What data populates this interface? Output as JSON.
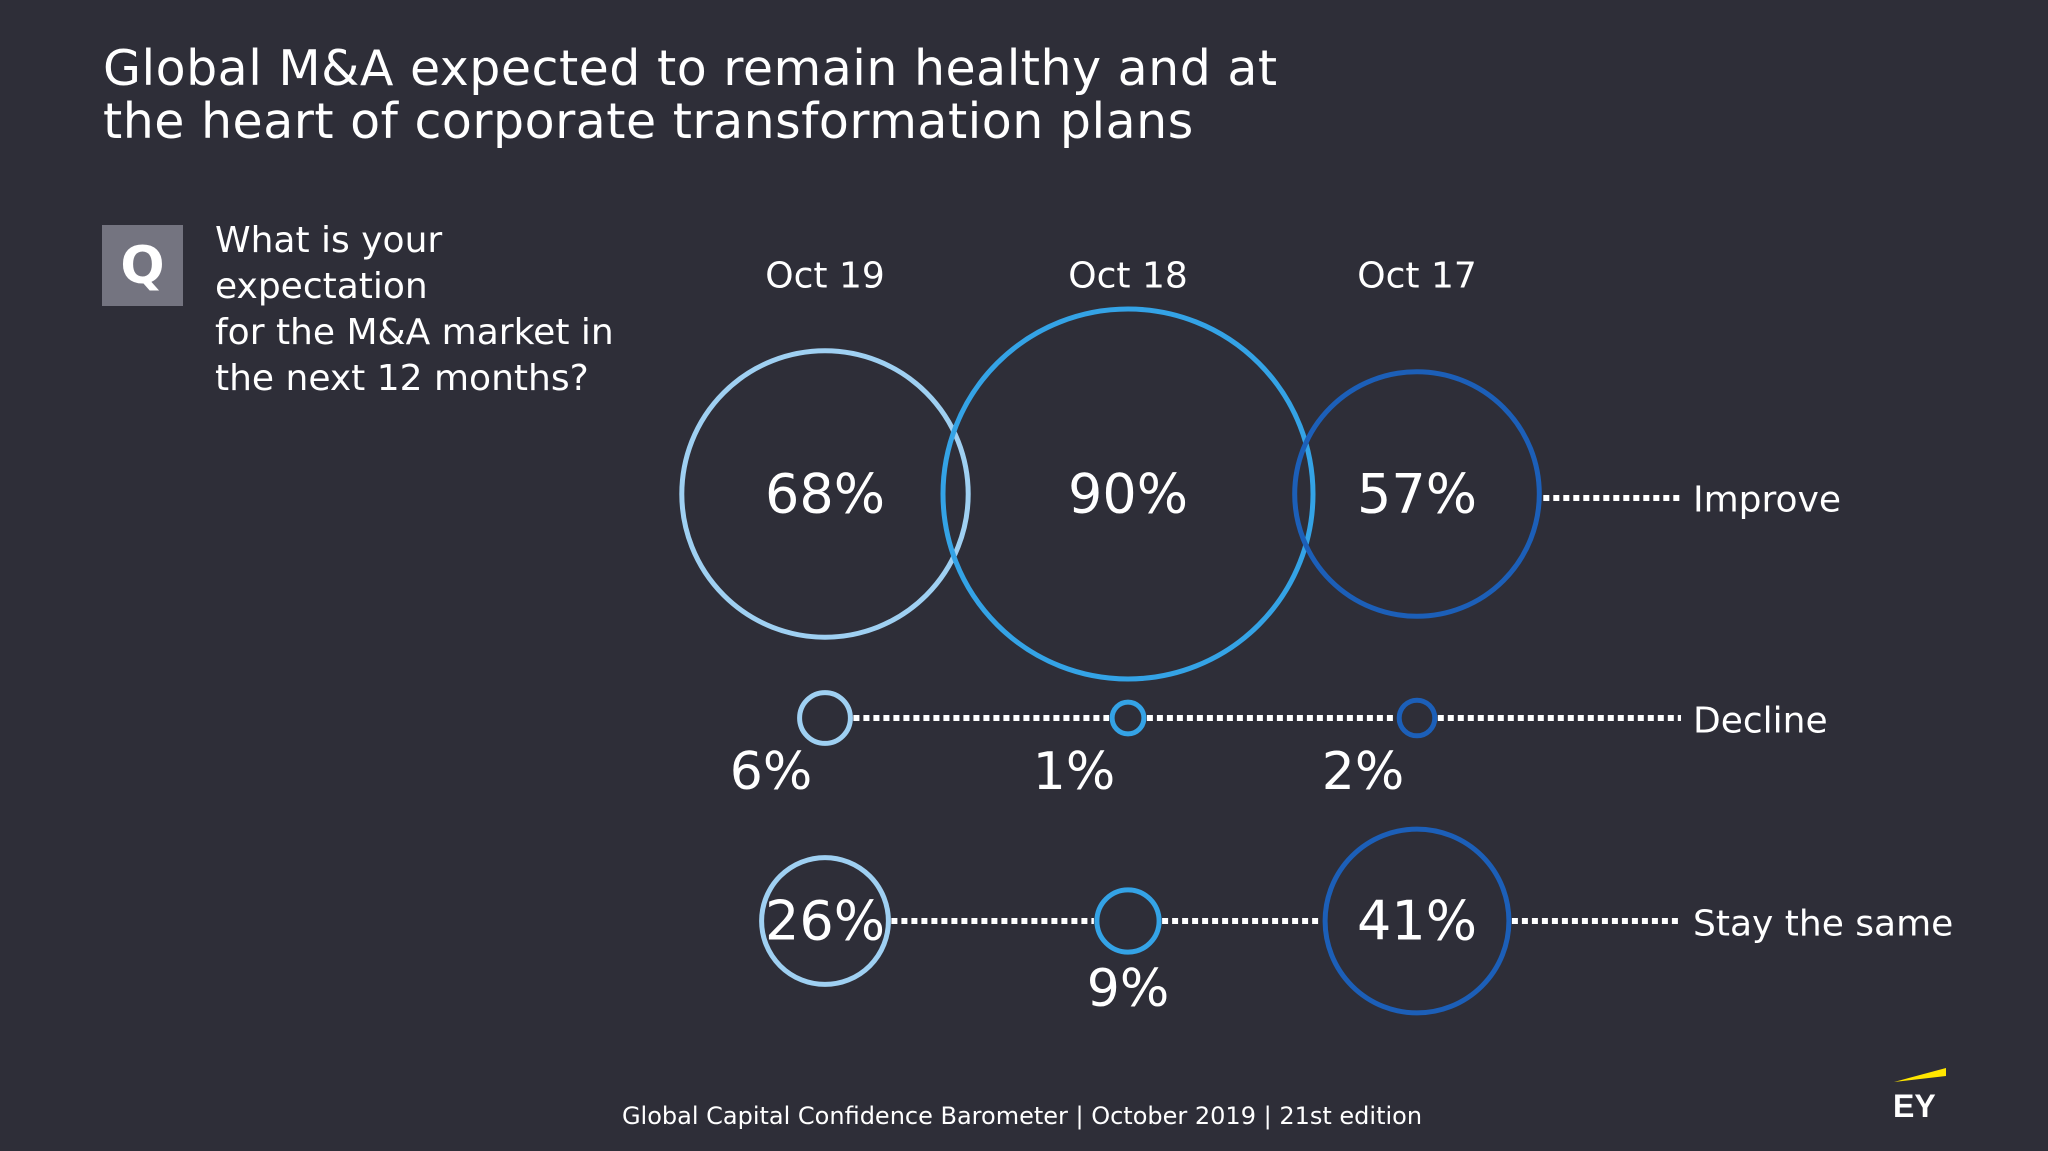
{
  "title": [
    "Global M&A expected to remain healthy and at",
    "the heart of corporate transformation plans"
  ],
  "question": {
    "badge": "Q",
    "text": [
      "What is your expectation",
      "for the M&A market in",
      "the next 12 months?"
    ]
  },
  "footer": "Global Capital Confidence Barometer | October 2019 | 21st edition",
  "logo": {
    "text": "EY",
    "colors": {
      "text": "#ffffff",
      "beam": "#ffe600"
    }
  },
  "chart_data": {
    "type": "bubble",
    "columns": [
      "Oct 19",
      "Oct 18",
      "Oct 17"
    ],
    "column_colors": [
      "#9fd0f2",
      "#34a3e6",
      "#1c5fb8"
    ],
    "rows": [
      {
        "label": "Improve",
        "values": [
          68,
          90,
          57
        ],
        "value_labels": [
          "68%",
          "90%",
          "57%"
        ]
      },
      {
        "label": "Decline",
        "values": [
          6,
          1,
          2
        ],
        "value_labels": [
          "6%",
          "1%",
          "2%"
        ]
      },
      {
        "label": "Stay the same",
        "values": [
          26,
          9,
          41
        ],
        "value_labels": [
          "26%",
          "9%",
          "41%"
        ]
      }
    ],
    "unit": "%"
  }
}
